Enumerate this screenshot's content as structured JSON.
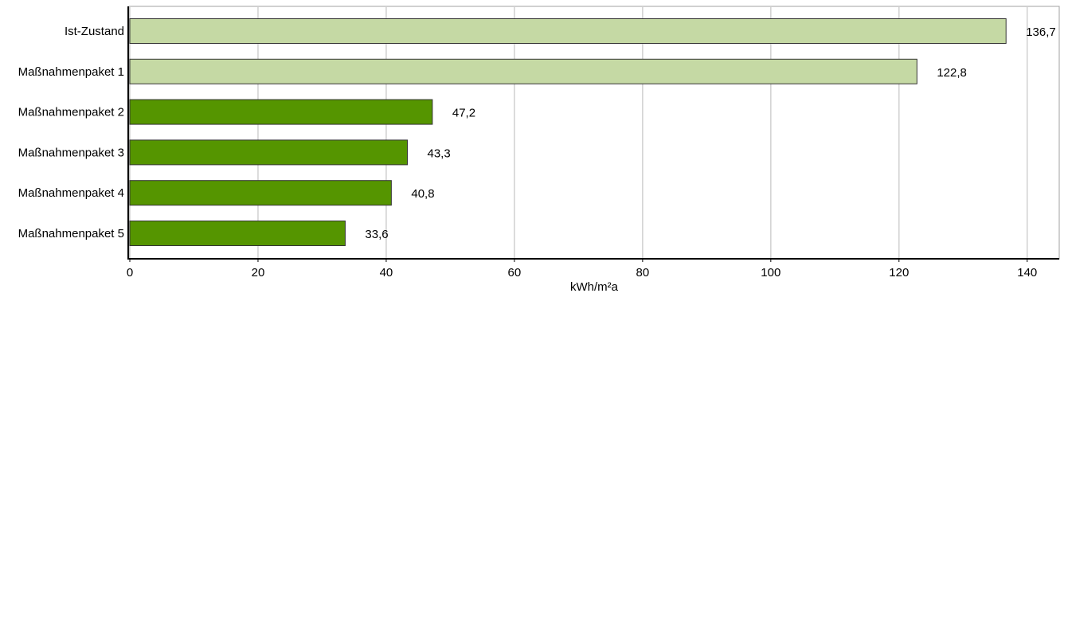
{
  "chart_data": {
    "type": "hbar",
    "categories": [
      "Ist-Zustand",
      "Maßnahmenpaket 1",
      "Maßnahmenpaket 2",
      "Maßnahmenpaket 3",
      "Maßnahmenpaket 4",
      "Maßnahmenpaket 5"
    ],
    "values": [
      136.7,
      122.8,
      47.2,
      43.3,
      40.8,
      33.6
    ],
    "value_labels": [
      "136,7",
      "122,8",
      "47,2",
      "43,3",
      "40,8",
      "33,6"
    ],
    "colors": [
      "#c5d9a4",
      "#c5d9a4",
      "#559500",
      "#559500",
      "#559500",
      "#559500"
    ],
    "x_label": "kWh/m²a",
    "xlim": [
      0,
      145
    ],
    "xticks": [
      0,
      20,
      40,
      60,
      80,
      100,
      120,
      140
    ],
    "grid": true
  }
}
